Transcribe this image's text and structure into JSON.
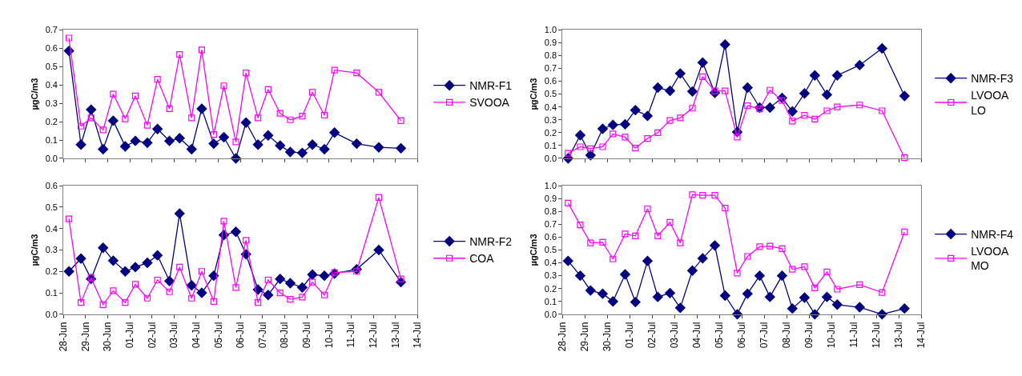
{
  "chart_data": [
    {
      "type": "line",
      "ylabel": "µgC/m3",
      "legend": "right",
      "tick_labels": "y",
      "grid": false,
      "x": [
        "--06-28T06:00",
        "--06-28T19:00",
        "--06-29T06:00",
        "--06-29T19:00",
        "--06-30T06:00",
        "--06-30T19:00",
        "--07-01T06:00",
        "--07-01T19:00",
        "--07-02T06:00",
        "--07-02T19:00",
        "--07-03T06:00",
        "--07-03T19:00",
        "--07-04T06:00",
        "--07-04T19:00",
        "--07-05T06:00",
        "--07-05T19:00",
        "--07-06T06:00",
        "--07-06T19:00",
        "--07-07T06:00",
        "--07-07T19:00",
        "--07-08T06:00",
        "--07-08T19:00",
        "--07-09T06:00",
        "--07-09T19:00",
        "--07-10T06:00",
        "--07-11T06:00",
        "--07-12T06:00",
        "--07-13T06:00"
      ],
      "xlim": [
        "--06-28",
        "--07-14"
      ],
      "xticks": [
        {
          "value": "--06-28",
          "label": "28-Jun"
        },
        {
          "value": "--06-29",
          "label": "29-Jun"
        },
        {
          "value": "--06-30",
          "label": "30-Jun"
        },
        {
          "value": "--07-01",
          "label": "01-Jul"
        },
        {
          "value": "--07-02",
          "label": "02-Jul"
        },
        {
          "value": "--07-03",
          "label": "03-Jul"
        },
        {
          "value": "--07-04",
          "label": "04-Jul"
        },
        {
          "value": "--07-05",
          "label": "05-Jul"
        },
        {
          "value": "--07-06",
          "label": "06-Jul"
        },
        {
          "value": "--07-07",
          "label": "07-Jul"
        },
        {
          "value": "--07-08",
          "label": "08-Jul"
        },
        {
          "value": "--07-09",
          "label": "09-Jul"
        },
        {
          "value": "--07-10",
          "label": "10-Jul"
        },
        {
          "value": "--07-11",
          "label": "11-Jul"
        },
        {
          "value": "--07-12",
          "label": "12-Jul"
        },
        {
          "value": "--07-13",
          "label": "13-Jul"
        },
        {
          "value": "--07-14",
          "label": "14-Jul"
        }
      ],
      "ylim": [
        0,
        0.7
      ],
      "yticks": [
        {
          "value": 0,
          "label": "0.0"
        },
        {
          "value": 0.1,
          "label": "0.1"
        },
        {
          "value": 0.2,
          "label": "0.2"
        },
        {
          "value": 0.3,
          "label": "0.3"
        },
        {
          "value": 0.4,
          "label": "0.4"
        },
        {
          "value": 0.5,
          "label": "0.5"
        },
        {
          "value": 0.6,
          "label": "0.6"
        },
        {
          "value": 0.7,
          "label": "0.7"
        }
      ],
      "series": [
        {
          "name": "NMR-F1",
          "color": "#000080",
          "marker": "diamond",
          "values": [
            0.585,
            0.075,
            0.265,
            0.05,
            0.205,
            0.065,
            0.095,
            0.085,
            0.16,
            0.095,
            0.11,
            0.05,
            0.27,
            0.08,
            0.115,
            0.0,
            0.195,
            0.075,
            0.125,
            0.07,
            0.035,
            0.03,
            0.075,
            0.05,
            0.14,
            0.08,
            0.06,
            0.055
          ]
        },
        {
          "name": "SVOOA",
          "color": "#ff00ff",
          "marker": "square",
          "values": [
            0.655,
            0.175,
            0.22,
            0.155,
            0.35,
            0.215,
            0.34,
            0.18,
            0.43,
            0.27,
            0.565,
            0.22,
            0.59,
            0.13,
            0.395,
            0.09,
            0.465,
            0.22,
            0.375,
            0.245,
            0.21,
            0.23,
            0.36,
            0.235,
            0.48,
            0.465,
            0.36,
            0.205
          ]
        }
      ]
    },
    {
      "type": "line",
      "ylabel": "µgC/m3",
      "legend": "right",
      "tick_labels": "y",
      "grid": false,
      "x": [
        "--06-28T06:00",
        "--06-28T19:00",
        "--06-29T06:00",
        "--06-29T19:00",
        "--06-30T06:00",
        "--06-30T19:00",
        "--07-01T06:00",
        "--07-01T19:00",
        "--07-02T06:00",
        "--07-02T19:00",
        "--07-03T06:00",
        "--07-03T19:00",
        "--07-04T06:00",
        "--07-04T19:00",
        "--07-05T06:00",
        "--07-05T19:00",
        "--07-06T06:00",
        "--07-06T19:00",
        "--07-07T06:00",
        "--07-07T19:00",
        "--07-08T06:00",
        "--07-08T19:00",
        "--07-09T06:00",
        "--07-09T19:00",
        "--07-10T06:00",
        "--07-11T06:00",
        "--07-12T06:00",
        "--07-13T06:00"
      ],
      "xlim": [
        "--06-28",
        "--07-14"
      ],
      "xticks": [
        {
          "value": "--06-28",
          "label": "28-Jun"
        },
        {
          "value": "--06-29",
          "label": "29-Jun"
        },
        {
          "value": "--06-30",
          "label": "30-Jun"
        },
        {
          "value": "--07-01",
          "label": "01-Jul"
        },
        {
          "value": "--07-02",
          "label": "02-Jul"
        },
        {
          "value": "--07-03",
          "label": "03-Jul"
        },
        {
          "value": "--07-04",
          "label": "04-Jul"
        },
        {
          "value": "--07-05",
          "label": "05-Jul"
        },
        {
          "value": "--07-06",
          "label": "06-Jul"
        },
        {
          "value": "--07-07",
          "label": "07-Jul"
        },
        {
          "value": "--07-08",
          "label": "08-Jul"
        },
        {
          "value": "--07-09",
          "label": "09-Jul"
        },
        {
          "value": "--07-10",
          "label": "10-Jul"
        },
        {
          "value": "--07-11",
          "label": "11-Jul"
        },
        {
          "value": "--07-12",
          "label": "12-Jul"
        },
        {
          "value": "--07-13",
          "label": "13-Jul"
        },
        {
          "value": "--07-14",
          "label": "14-Jul"
        }
      ],
      "ylim": [
        0,
        1.0
      ],
      "yticks": [
        {
          "value": 0,
          "label": "0.0"
        },
        {
          "value": 0.1,
          "label": "0.1"
        },
        {
          "value": 0.2,
          "label": "0.2"
        },
        {
          "value": 0.3,
          "label": "0.3"
        },
        {
          "value": 0.4,
          "label": "0.4"
        },
        {
          "value": 0.5,
          "label": "0.5"
        },
        {
          "value": 0.6,
          "label": "0.6"
        },
        {
          "value": 0.7,
          "label": "0.7"
        },
        {
          "value": 0.8,
          "label": "0.8"
        },
        {
          "value": 0.9,
          "label": "0.9"
        },
        {
          "value": 1.0,
          "label": "1.0"
        }
      ],
      "series": [
        {
          "name": "NMR-F3",
          "color": "#000080",
          "marker": "diamond",
          "values": [
            0.0,
            0.18,
            0.025,
            0.23,
            0.26,
            0.265,
            0.375,
            0.33,
            0.55,
            0.525,
            0.66,
            0.52,
            0.745,
            0.51,
            0.885,
            0.205,
            0.55,
            0.395,
            0.395,
            0.47,
            0.365,
            0.505,
            0.645,
            0.495,
            0.645,
            0.725,
            0.855,
            0.485
          ]
        },
        {
          "name": "LVOOA LO",
          "color": "#ff00ff",
          "marker": "square",
          "values": [
            0.04,
            0.09,
            0.075,
            0.09,
            0.19,
            0.165,
            0.08,
            0.155,
            0.2,
            0.295,
            0.315,
            0.39,
            0.635,
            0.525,
            0.525,
            0.165,
            0.41,
            0.385,
            0.53,
            0.45,
            0.29,
            0.335,
            0.305,
            0.37,
            0.4,
            0.415,
            0.37,
            0.005
          ]
        }
      ]
    },
    {
      "type": "line",
      "ylabel": "µgC/m3",
      "legend": "right",
      "grid": false,
      "x": [
        "--06-28T06:00",
        "--06-28T19:00",
        "--06-29T06:00",
        "--06-29T19:00",
        "--06-30T06:00",
        "--06-30T19:00",
        "--07-01T06:00",
        "--07-01T19:00",
        "--07-02T06:00",
        "--07-02T19:00",
        "--07-03T06:00",
        "--07-03T19:00",
        "--07-04T06:00",
        "--07-04T19:00",
        "--07-05T06:00",
        "--07-05T19:00",
        "--07-06T06:00",
        "--07-06T19:00",
        "--07-07T06:00",
        "--07-07T19:00",
        "--07-08T06:00",
        "--07-08T19:00",
        "--07-09T06:00",
        "--07-09T19:00",
        "--07-10T06:00",
        "--07-11T06:00",
        "--07-12T06:00",
        "--07-13T06:00"
      ],
      "xlim": [
        "--06-28",
        "--07-14"
      ],
      "xticks": [
        {
          "value": "--06-28",
          "label": "28-Jun"
        },
        {
          "value": "--06-29",
          "label": "29-Jun"
        },
        {
          "value": "--06-30",
          "label": "30-Jun"
        },
        {
          "value": "--07-01",
          "label": "01-Jul"
        },
        {
          "value": "--07-02",
          "label": "02-Jul"
        },
        {
          "value": "--07-03",
          "label": "03-Jul"
        },
        {
          "value": "--07-04",
          "label": "04-Jul"
        },
        {
          "value": "--07-05",
          "label": "05-Jul"
        },
        {
          "value": "--07-06",
          "label": "06-Jul"
        },
        {
          "value": "--07-07",
          "label": "07-Jul"
        },
        {
          "value": "--07-08",
          "label": "08-Jul"
        },
        {
          "value": "--07-09",
          "label": "09-Jul"
        },
        {
          "value": "--07-10",
          "label": "10-Jul"
        },
        {
          "value": "--07-11",
          "label": "11-Jul"
        },
        {
          "value": "--07-12",
          "label": "12-Jul"
        },
        {
          "value": "--07-13",
          "label": "13-Jul"
        },
        {
          "value": "--07-14",
          "label": "14-Jul"
        }
      ],
      "ylim": [
        0,
        0.6
      ],
      "yticks": [
        {
          "value": 0,
          "label": "0.0"
        },
        {
          "value": 0.1,
          "label": "0.1"
        },
        {
          "value": 0.2,
          "label": "0.2"
        },
        {
          "value": 0.3,
          "label": "0.3"
        },
        {
          "value": 0.4,
          "label": "0.4"
        },
        {
          "value": 0.5,
          "label": "0.5"
        },
        {
          "value": 0.6,
          "label": "0.6"
        }
      ],
      "series": [
        {
          "name": "NMR-F2",
          "color": "#000080",
          "marker": "diamond",
          "values": [
            0.2,
            0.26,
            0.165,
            0.31,
            0.25,
            0.2,
            0.22,
            0.24,
            0.275,
            0.155,
            0.47,
            0.135,
            0.1,
            0.18,
            0.37,
            0.385,
            0.28,
            0.115,
            0.09,
            0.165,
            0.145,
            0.125,
            0.185,
            0.18,
            0.19,
            0.21,
            0.3,
            0.15
          ]
        },
        {
          "name": "COA",
          "color": "#ff00ff",
          "marker": "square",
          "values": [
            0.445,
            0.055,
            0.17,
            0.045,
            0.11,
            0.055,
            0.14,
            0.075,
            0.16,
            0.105,
            0.22,
            0.075,
            0.2,
            0.06,
            0.435,
            0.125,
            0.345,
            0.055,
            0.16,
            0.1,
            0.07,
            0.08,
            0.15,
            0.09,
            0.195,
            0.2,
            0.545,
            0.165
          ]
        }
      ]
    },
    {
      "type": "line",
      "ylabel": "µgC/m3",
      "legend": "right",
      "grid": false,
      "x": [
        "--06-28T06:00",
        "--06-28T19:00",
        "--06-29T06:00",
        "--06-29T19:00",
        "--06-30T06:00",
        "--06-30T19:00",
        "--07-01T06:00",
        "--07-01T19:00",
        "--07-02T06:00",
        "--07-02T19:00",
        "--07-03T06:00",
        "--07-03T19:00",
        "--07-04T06:00",
        "--07-04T19:00",
        "--07-05T06:00",
        "--07-05T19:00",
        "--07-06T06:00",
        "--07-06T19:00",
        "--07-07T06:00",
        "--07-07T19:00",
        "--07-08T06:00",
        "--07-08T19:00",
        "--07-09T06:00",
        "--07-09T19:00",
        "--07-10T06:00",
        "--07-11T06:00",
        "--07-12T06:00",
        "--07-13T06:00"
      ],
      "xlim": [
        "--06-28",
        "--07-14"
      ],
      "xticks": [
        {
          "value": "--06-28",
          "label": "28-Jun"
        },
        {
          "value": "--06-29",
          "label": "29-Jun"
        },
        {
          "value": "--06-30",
          "label": "30-Jun"
        },
        {
          "value": "--07-01",
          "label": "01-Jul"
        },
        {
          "value": "--07-02",
          "label": "02-Jul"
        },
        {
          "value": "--07-03",
          "label": "03-Jul"
        },
        {
          "value": "--07-04",
          "label": "04-Jul"
        },
        {
          "value": "--07-05",
          "label": "05-Jul"
        },
        {
          "value": "--07-06",
          "label": "06-Jul"
        },
        {
          "value": "--07-07",
          "label": "07-Jul"
        },
        {
          "value": "--07-08",
          "label": "08-Jul"
        },
        {
          "value": "--07-09",
          "label": "09-Jul"
        },
        {
          "value": "--07-10",
          "label": "10-Jul"
        },
        {
          "value": "--07-11",
          "label": "11-Jul"
        },
        {
          "value": "--07-12",
          "label": "12-Jul"
        },
        {
          "value": "--07-13",
          "label": "13-Jul"
        },
        {
          "value": "--07-14",
          "label": "14-Jul"
        }
      ],
      "ylim": [
        0,
        1.0
      ],
      "yticks": [
        {
          "value": 0,
          "label": "0.0"
        },
        {
          "value": 0.1,
          "label": "0.1"
        },
        {
          "value": 0.2,
          "label": "0.2"
        },
        {
          "value": 0.3,
          "label": "0.3"
        },
        {
          "value": 0.4,
          "label": "0.4"
        },
        {
          "value": 0.5,
          "label": "0.5"
        },
        {
          "value": 0.6,
          "label": "0.6"
        },
        {
          "value": 0.7,
          "label": "0.7"
        },
        {
          "value": 0.8,
          "label": "0.8"
        },
        {
          "value": 0.9,
          "label": "0.9"
        },
        {
          "value": 1.0,
          "label": "1.0"
        }
      ],
      "series": [
        {
          "name": "NMR-F4",
          "color": "#000080",
          "marker": "diamond",
          "values": [
            0.415,
            0.3,
            0.185,
            0.16,
            0.1,
            0.31,
            0.095,
            0.415,
            0.135,
            0.165,
            0.05,
            0.34,
            0.435,
            0.535,
            0.145,
            0.0,
            0.16,
            0.3,
            0.135,
            0.3,
            0.045,
            0.13,
            0.0,
            0.135,
            0.075,
            0.055,
            0.0,
            0.045
          ]
        },
        {
          "name": "LVOOA MO",
          "color": "#ff00ff",
          "marker": "square",
          "values": [
            0.865,
            0.695,
            0.555,
            0.56,
            0.43,
            0.625,
            0.61,
            0.82,
            0.61,
            0.715,
            0.555,
            0.93,
            0.925,
            0.925,
            0.825,
            0.32,
            0.45,
            0.525,
            0.53,
            0.51,
            0.35,
            0.37,
            0.205,
            0.33,
            0.195,
            0.23,
            0.17,
            0.64
          ]
        }
      ]
    }
  ]
}
